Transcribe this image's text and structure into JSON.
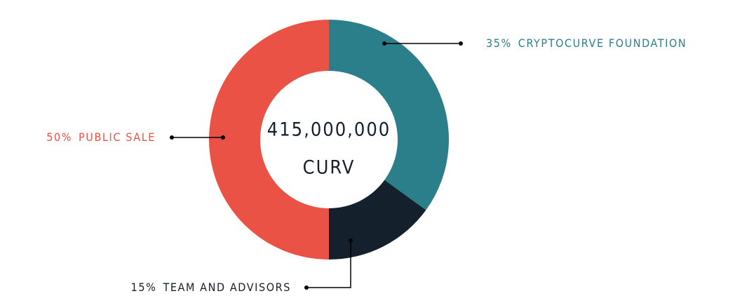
{
  "chart_data": {
    "type": "donut",
    "categories": [
      "CRYPTOCURVE FOUNDATION",
      "TEAM AND ADVISORS",
      "PUBLIC SALE"
    ],
    "values": [
      35,
      15,
      50
    ],
    "value_labels": [
      "35%",
      "15%",
      "50%"
    ],
    "colors": [
      "#2a7f8a",
      "#14202b",
      "#e95244"
    ],
    "center_label": [
      "415,000,000",
      "CURV"
    ]
  }
}
